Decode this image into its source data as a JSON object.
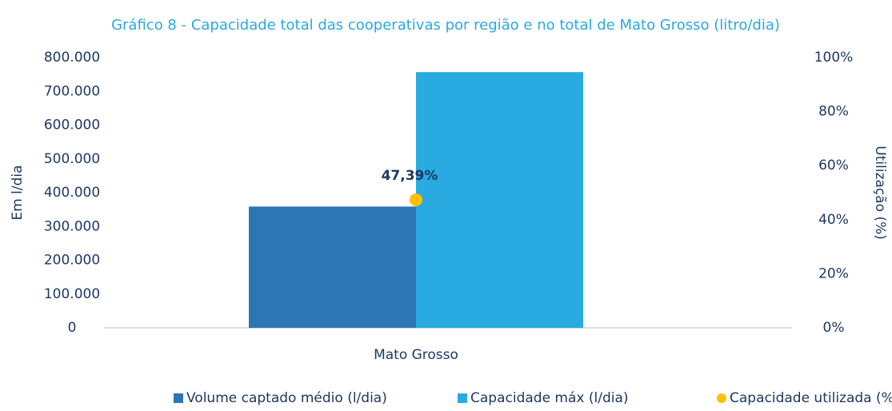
{
  "chart_data": {
    "type": "bar",
    "title": "Gráfico 8 - Capacidade total das cooperativas por região e no total de Mato Grosso (litro/dia)",
    "y_label": "Em l/dia",
    "y2_label": "Utilização (%)",
    "categories": [
      "Mato Grosso"
    ],
    "series": [
      {
        "name": "Volume captado médio (l/dia)",
        "color": "#2e75b6",
        "values": [
          359000
        ]
      },
      {
        "name": "Capacidade máx (l/dia)",
        "color": "#29abe2",
        "values": [
          757000
        ]
      },
      {
        "name": "Capacidade utilizada (%)",
        "color": "#ffc000",
        "type": "scatter",
        "axis": "y2",
        "values": [
          47.39
        ],
        "value_labels": [
          "47,39%"
        ]
      }
    ],
    "ylim": [
      0,
      800000
    ],
    "yticks": [
      0,
      {
        "value": 100000,
        "label": "100.000"
      },
      {
        "value": 200000,
        "label": "200.000"
      },
      {
        "value": 300000,
        "label": "300.000"
      },
      {
        "value": 400000,
        "label": "400.000"
      },
      {
        "value": 500000,
        "label": "500.000"
      },
      {
        "value": 600000,
        "label": "600.000"
      },
      {
        "value": 700000,
        "label": "700.000"
      },
      {
        "value": 800000,
        "label": "800.000"
      }
    ],
    "y2lim": [
      0,
      100
    ],
    "y2ticks": [
      {
        "value": 0,
        "label": "0%"
      },
      {
        "value": 20,
        "label": "20%"
      },
      {
        "value": 40,
        "label": "40%"
      },
      {
        "value": 60,
        "label": "60%"
      },
      {
        "value": 80,
        "label": "80%"
      },
      {
        "value": 100,
        "label": "100%"
      }
    ],
    "legend": "bottom"
  }
}
